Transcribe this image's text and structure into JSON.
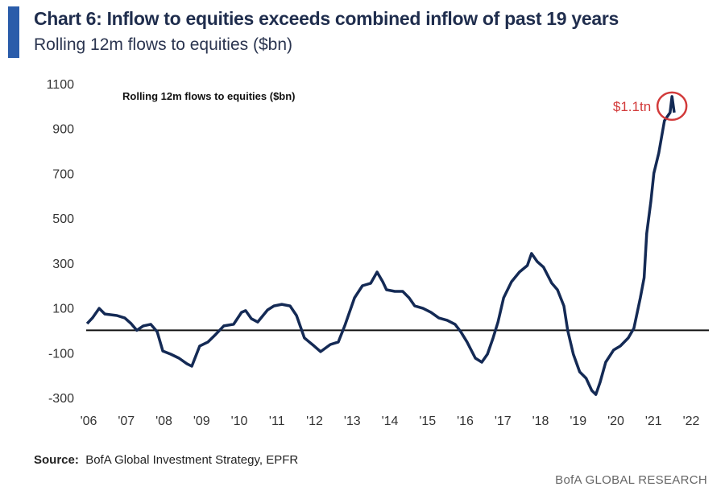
{
  "header": {
    "title": "Chart 6: Inflow to equities exceeds combined inflow of past 19 years",
    "subtitle": "Rolling 12m flows to equities ($bn)"
  },
  "footer": {
    "source_label": "Source:",
    "source_text": "BofA Global Investment Strategy, EPFR",
    "brand": "BofA GLOBAL RESEARCH"
  },
  "colors": {
    "line": "#142a55",
    "accent": "#2a5caa",
    "annotation": "#d23a3a"
  },
  "chart_data": {
    "type": "line",
    "title": "Rolling 12m flows to equities ($bn)",
    "xlabel": "",
    "ylabel": "",
    "ylim": [
      -300,
      1100
    ],
    "xlim": [
      2006,
      2022
    ],
    "yticks": [
      1100,
      900,
      700,
      500,
      300,
      100,
      -100,
      -300
    ],
    "xticks": [
      {
        "v": 2006,
        "label": "'06"
      },
      {
        "v": 2007,
        "label": "'07"
      },
      {
        "v": 2008,
        "label": "'08"
      },
      {
        "v": 2009,
        "label": "'09"
      },
      {
        "v": 2010,
        "label": "'10"
      },
      {
        "v": 2011,
        "label": "'11"
      },
      {
        "v": 2012,
        "label": "'12"
      },
      {
        "v": 2013,
        "label": "'13"
      },
      {
        "v": 2014,
        "label": "'14"
      },
      {
        "v": 2015,
        "label": "'15"
      },
      {
        "v": 2016,
        "label": "'16"
      },
      {
        "v": 2017,
        "label": "'17"
      },
      {
        "v": 2018,
        "label": "'18"
      },
      {
        "v": 2019,
        "label": "'19"
      },
      {
        "v": 2020,
        "label": "'20"
      },
      {
        "v": 2021,
        "label": "'21"
      },
      {
        "v": 2022,
        "label": "'22"
      }
    ],
    "reference_line": 0,
    "grid": false,
    "annotation": {
      "text": "$1.1tn",
      "x": 2021.49,
      "y": 1043
    },
    "series": [
      {
        "name": "Rolling 12m flows to equities ($bn)",
        "x": [
          2005.96,
          2006.1,
          2006.28,
          2006.43,
          2006.75,
          2006.96,
          2007.13,
          2007.28,
          2007.45,
          2007.65,
          2007.82,
          2007.97,
          2008.18,
          2008.4,
          2008.61,
          2008.74,
          2008.95,
          2009.17,
          2009.38,
          2009.59,
          2009.85,
          2010.06,
          2010.17,
          2010.32,
          2010.49,
          2010.75,
          2010.92,
          2011.13,
          2011.35,
          2011.52,
          2011.73,
          2011.99,
          2012.16,
          2012.42,
          2012.63,
          2012.8,
          2013.06,
          2013.27,
          2013.49,
          2013.66,
          2013.81,
          2013.91,
          2014.13,
          2014.34,
          2014.51,
          2014.66,
          2014.88,
          2015.09,
          2015.3,
          2015.52,
          2015.73,
          2015.88,
          2016.05,
          2016.27,
          2016.44,
          2016.59,
          2016.74,
          2016.87,
          2017.02,
          2017.23,
          2017.44,
          2017.65,
          2017.76,
          2017.91,
          2018.08,
          2018.3,
          2018.45,
          2018.62,
          2018.72,
          2018.87,
          2019.04,
          2019.21,
          2019.36,
          2019.47,
          2019.58,
          2019.73,
          2019.94,
          2020.12,
          2020.33,
          2020.48,
          2020.65,
          2020.75,
          2020.82,
          2020.93,
          2021.01,
          2021.14,
          2021.29,
          2021.44,
          2021.49,
          2021.55
        ],
        "values": [
          30,
          55,
          98,
          73,
          66,
          55,
          30,
          0,
          20,
          27,
          -6,
          -92,
          -106,
          -124,
          -149,
          -160,
          -70,
          -52,
          -17,
          20,
          27,
          80,
          88,
          52,
          37,
          91,
          109,
          116,
          109,
          66,
          -34,
          -70,
          -95,
          -63,
          -52,
          20,
          145,
          199,
          210,
          260,
          217,
          181,
          174,
          174,
          145,
          109,
          98,
          80,
          55,
          45,
          27,
          -6,
          -52,
          -124,
          -142,
          -106,
          -34,
          37,
          145,
          217,
          260,
          289,
          343,
          307,
          282,
          210,
          181,
          109,
          0,
          -106,
          -185,
          -214,
          -268,
          -286,
          -232,
          -142,
          -88,
          -70,
          -34,
          9,
          145,
          235,
          432,
          576,
          701,
          791,
          935,
          971,
          1043,
          971
        ]
      }
    ]
  }
}
